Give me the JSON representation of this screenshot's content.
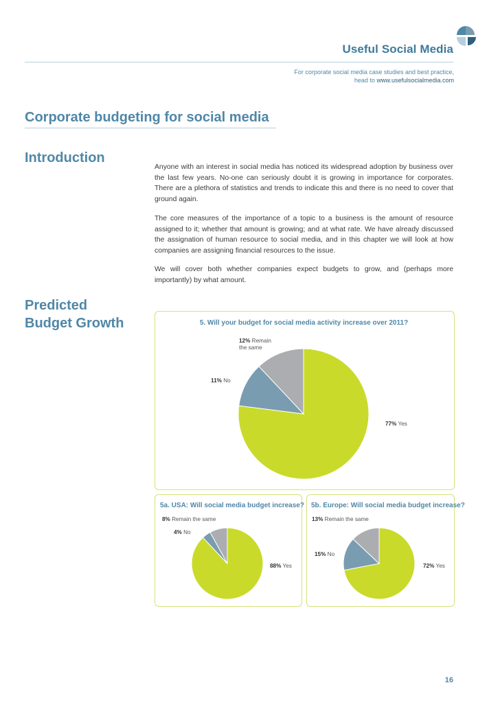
{
  "header": {
    "brand": "Useful Social Media",
    "tagline_line1": "For corporate social media case studies and best practice,",
    "tagline_prefix": "head to ",
    "tagline_url": "www.usefulsocialmedia.com"
  },
  "page_title": "Corporate budgeting for social media",
  "intro": {
    "heading": "Introduction",
    "paragraphs": [
      "Anyone with an interest in social media has noticed its widespread adoption by business over the last few years. No-one can seriously doubt it is growing in importance for corporates. There are a plethora of statistics and trends to indicate this and there is no need to cover that ground again.",
      "The core measures of the importance of a topic to a business is the amount of resource assigned to it; whether that amount is growing; and at what rate. We have already discussed the assignation of human resource to social media, and in this chapter we will look at how companies are assigning financial resources to the issue.",
      "We will cover both whether companies expect budgets to grow, and (perhaps more importantly) by what amount."
    ]
  },
  "predicted": {
    "heading_line1": "Predicted",
    "heading_line2": "Budget Growth"
  },
  "colors": {
    "yes": "#c9da2b",
    "no": "#7a9cb0",
    "remain": "#abadb0",
    "accent": "#4f87a7"
  },
  "chart_data": [
    {
      "type": "pie",
      "title": "5. Will your budget for social media activity increase over 2011?",
      "slices": [
        {
          "label": "Yes",
          "pct_text": "77%",
          "value": 77
        },
        {
          "label": "No",
          "pct_text": "11%",
          "value": 11
        },
        {
          "label": "Remain the same",
          "label_line1": "Remain",
          "label_line2": "the same",
          "pct_text": "12%",
          "value": 12
        }
      ]
    },
    {
      "type": "pie",
      "title": "5a. USA: Will social media budget increase?",
      "slices": [
        {
          "label": "Yes",
          "pct_text": "88%",
          "value": 88
        },
        {
          "label": "No",
          "pct_text": "4%",
          "value": 4
        },
        {
          "label": "Remain the same",
          "pct_text": "8%",
          "value": 8
        }
      ]
    },
    {
      "type": "pie",
      "title": "5b. Europe: Will social media budget increase?",
      "slices": [
        {
          "label": "Yes",
          "pct_text": "72%",
          "value": 72
        },
        {
          "label": "No",
          "pct_text": "15%",
          "value": 15
        },
        {
          "label": "Remain the same",
          "pct_text": "13%",
          "value": 13
        }
      ]
    }
  ],
  "page_number": "16"
}
